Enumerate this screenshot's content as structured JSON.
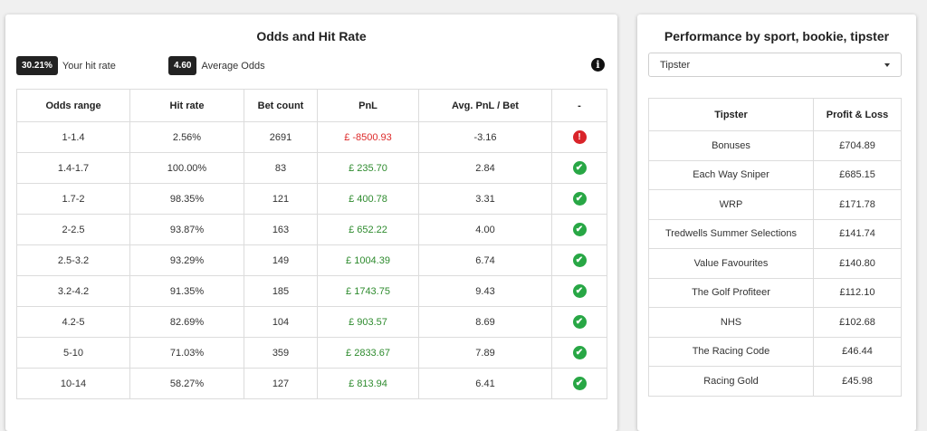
{
  "odds_panel": {
    "title": "Odds and Hit Rate",
    "hit_rate": {
      "value": "30.21%",
      "label": "Your hit rate"
    },
    "avg_odds": {
      "value": "4.60",
      "label": "Average Odds"
    },
    "info_icon": "info-circle-icon",
    "columns": [
      "Odds range",
      "Hit rate",
      "Bet count",
      "PnL",
      "Avg. PnL / Bet",
      "-"
    ],
    "rows": [
      {
        "range": "1-1.4",
        "hit_rate": "2.56%",
        "count": "2691",
        "pnl": "£ -8500.93",
        "avg": "-3.16",
        "status": "bad"
      },
      {
        "range": "1.4-1.7",
        "hit_rate": "100.00%",
        "count": "83",
        "pnl": "£ 235.70",
        "avg": "2.84",
        "status": "ok"
      },
      {
        "range": "1.7-2",
        "hit_rate": "98.35%",
        "count": "121",
        "pnl": "£ 400.78",
        "avg": "3.31",
        "status": "ok"
      },
      {
        "range": "2-2.5",
        "hit_rate": "93.87%",
        "count": "163",
        "pnl": "£ 652.22",
        "avg": "4.00",
        "status": "ok"
      },
      {
        "range": "2.5-3.2",
        "hit_rate": "93.29%",
        "count": "149",
        "pnl": "£ 1004.39",
        "avg": "6.74",
        "status": "ok"
      },
      {
        "range": "3.2-4.2",
        "hit_rate": "91.35%",
        "count": "185",
        "pnl": "£ 1743.75",
        "avg": "9.43",
        "status": "ok"
      },
      {
        "range": "4.2-5",
        "hit_rate": "82.69%",
        "count": "104",
        "pnl": "£ 903.57",
        "avg": "8.69",
        "status": "ok"
      },
      {
        "range": "5-10",
        "hit_rate": "71.03%",
        "count": "359",
        "pnl": "£ 2833.67",
        "avg": "7.89",
        "status": "ok"
      },
      {
        "range": "10-14",
        "hit_rate": "58.27%",
        "count": "127",
        "pnl": "£ 813.94",
        "avg": "6.41",
        "status": "ok"
      }
    ],
    "colors": {
      "positive": "#2e8b2e",
      "negative": "#dd2a2a",
      "ok_icon": "#28a745",
      "bad_icon": "#d9242a"
    }
  },
  "performance_panel": {
    "title": "Performance by sport, bookie, tipster",
    "select_value": "Tipster",
    "columns": [
      "Tipster",
      "Profit & Loss"
    ],
    "rows": [
      {
        "name": "Bonuses",
        "pnl": "£704.89"
      },
      {
        "name": "Each Way Sniper",
        "pnl": "£685.15"
      },
      {
        "name": "WRP",
        "pnl": "£171.78"
      },
      {
        "name": "Tredwells Summer Selections",
        "pnl": "£141.74"
      },
      {
        "name": "Value Favourites",
        "pnl": "£140.80"
      },
      {
        "name": "The Golf Profiteer",
        "pnl": "£112.10"
      },
      {
        "name": "NHS",
        "pnl": "£102.68"
      },
      {
        "name": "The Racing Code",
        "pnl": "£46.44"
      },
      {
        "name": "Racing Gold",
        "pnl": "£45.98"
      }
    ]
  }
}
